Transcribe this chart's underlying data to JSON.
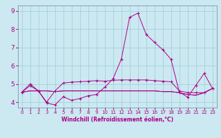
{
  "xlabel": "Windchill (Refroidissement éolien,°C)",
  "background_color": "#cce8f0",
  "grid_color": "#99ccdd",
  "line_color": "#aa0088",
  "xlim": [
    -0.5,
    23.5
  ],
  "ylim": [
    3.7,
    9.3
  ],
  "xticks": [
    0,
    1,
    2,
    3,
    4,
    5,
    6,
    7,
    8,
    9,
    10,
    11,
    12,
    13,
    14,
    15,
    16,
    17,
    18,
    19,
    20,
    21,
    22,
    23
  ],
  "yticks": [
    4,
    5,
    6,
    7,
    8,
    9
  ],
  "curve1": [
    4.55,
    4.9,
    4.62,
    3.95,
    3.85,
    4.3,
    4.1,
    4.2,
    4.35,
    4.42,
    4.82,
    5.28,
    6.35,
    8.65,
    8.88,
    7.72,
    7.28,
    6.88,
    6.35,
    4.55,
    4.28,
    4.92,
    5.58,
    4.75
  ],
  "curve2": [
    4.55,
    5.0,
    4.62,
    4.0,
    4.62,
    5.05,
    5.1,
    5.12,
    5.15,
    5.18,
    5.15,
    5.2,
    5.22,
    5.22,
    5.22,
    5.22,
    5.18,
    5.15,
    5.12,
    4.62,
    4.52,
    4.52,
    4.52,
    4.75
  ],
  "curve3": [
    4.55,
    4.62,
    4.62,
    4.62,
    4.58,
    4.62,
    4.62,
    4.62,
    4.62,
    4.62,
    4.62,
    4.62,
    4.62,
    4.62,
    4.62,
    4.62,
    4.62,
    4.58,
    4.58,
    4.52,
    4.42,
    4.38,
    4.52,
    4.75
  ],
  "curve4": [
    4.55,
    4.62,
    4.62,
    4.62,
    4.58,
    4.62,
    4.62,
    4.62,
    4.62,
    4.62,
    4.62,
    4.62,
    4.62,
    4.62,
    4.62,
    4.62,
    4.62,
    4.58,
    4.58,
    4.52,
    4.42,
    4.38,
    4.52,
    4.75
  ],
  "xticklabel_fontsize": 5.0,
  "yticklabel_fontsize": 6.5,
  "xlabel_fontsize": 5.5
}
